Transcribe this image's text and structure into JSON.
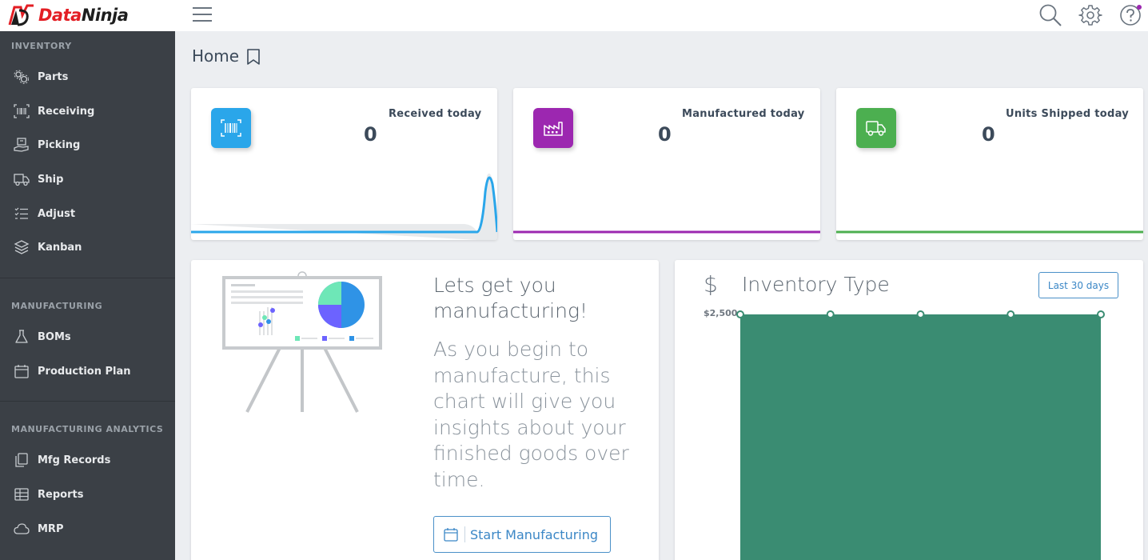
{
  "app": {
    "brand_part1": "Data",
    "brand_part2": "Ninja",
    "brand_color": "#e31e24"
  },
  "topbar": {
    "icons": [
      "menu-icon",
      "search-icon",
      "gear-icon",
      "help-icon"
    ]
  },
  "sidebar": {
    "sections": [
      {
        "title": "INVENTORY",
        "items": [
          {
            "label": "Parts",
            "icon": "gears-icon"
          },
          {
            "label": "Receiving",
            "icon": "barcode-icon"
          },
          {
            "label": "Picking",
            "icon": "hand-box-icon"
          },
          {
            "label": "Ship",
            "icon": "truck-icon"
          },
          {
            "label": "Adjust",
            "icon": "checklist-icon"
          },
          {
            "label": "Kanban",
            "icon": "layers-icon"
          }
        ]
      },
      {
        "title": "MANUFACTURING",
        "items": [
          {
            "label": "BOMs",
            "icon": "flask-icon"
          },
          {
            "label": "Production Plan",
            "icon": "calendar-icon"
          }
        ]
      },
      {
        "title": "MANUFACTURING ANALYTICS",
        "items": [
          {
            "label": "Mfg Records",
            "icon": "copy-icon"
          },
          {
            "label": "Reports",
            "icon": "table-icon"
          },
          {
            "label": "MRP",
            "icon": "cloud-icon"
          }
        ]
      }
    ]
  },
  "header": {
    "title": "Home"
  },
  "stats": [
    {
      "label": "Received today",
      "value": "0",
      "color": "#2aa6ea",
      "icon": "barcode-scan-icon"
    },
    {
      "label": "Manufactured today",
      "value": "0",
      "color": "#9c27b0",
      "icon": "factory-icon"
    },
    {
      "label": "Units Shipped today",
      "value": "0",
      "color": "#4caf50",
      "icon": "truck-icon"
    }
  ],
  "welcome": {
    "title": "Lets get you manufacturing!",
    "body": "As you begin to manufacture, this chart will give you insights about your finished goods over time.",
    "button_label": "Start Manufacturing"
  },
  "inventory": {
    "currency_symbol": "$",
    "title": "Inventory Type",
    "range_label": "Last 30 days",
    "chart_data": {
      "type": "area",
      "y_tick_labels": [
        "$2,500"
      ],
      "ylim": [
        0,
        2500
      ],
      "series": [
        {
          "values": [
            2500,
            2500,
            2500,
            2500,
            2500
          ],
          "color": "#3a8c72"
        }
      ]
    }
  }
}
